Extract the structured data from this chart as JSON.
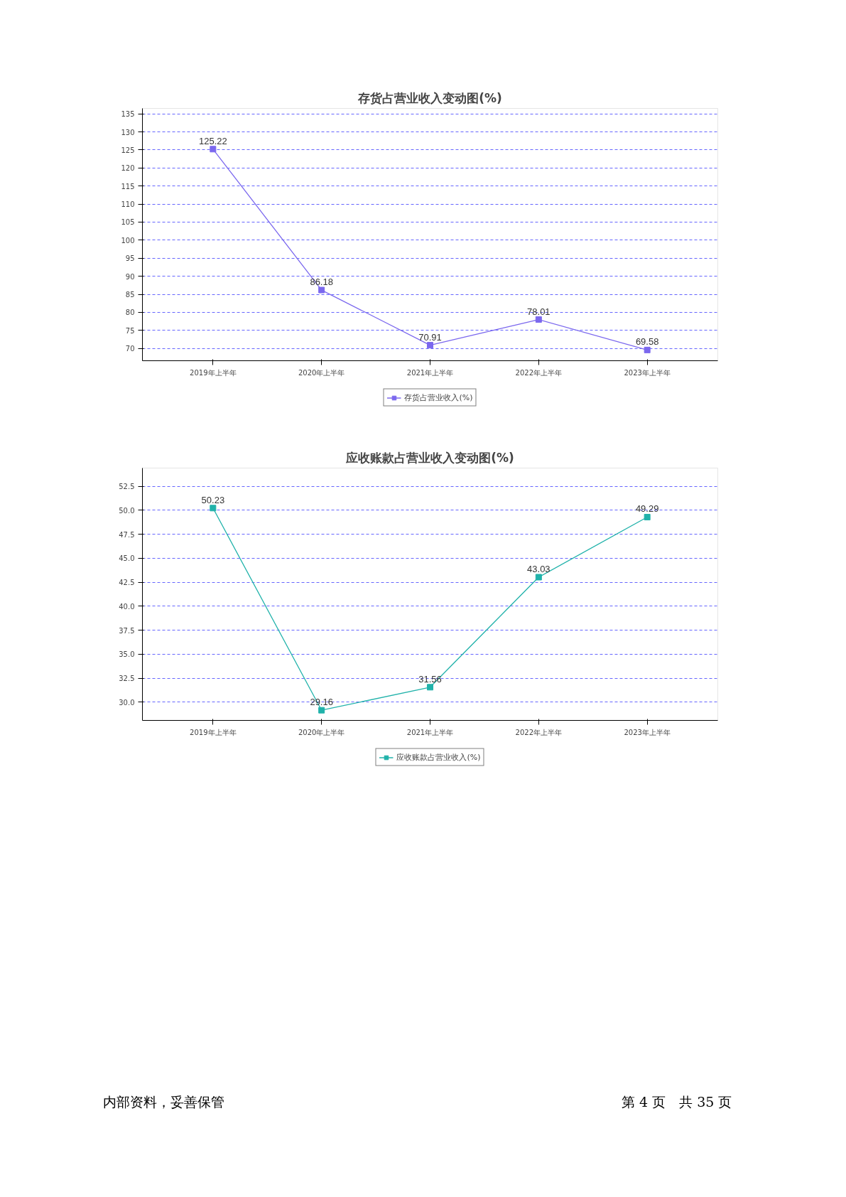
{
  "chart_data": [
    {
      "type": "line",
      "title": "存货占营业收入变动图(%)",
      "categories": [
        "2019年上半年",
        "2020年上半年",
        "2021年上半年",
        "2022年上半年",
        "2023年上半年"
      ],
      "series": [
        {
          "name": "存货占营业收入(%)",
          "color": "#7b68ee",
          "values": [
            125.22,
            86.18,
            70.91,
            78.01,
            69.58
          ]
        }
      ],
      "ylim": [
        66.6,
        136.5
      ],
      "yticks": [
        70,
        75,
        80,
        85,
        90,
        95,
        100,
        105,
        110,
        115,
        120,
        125,
        130,
        135
      ],
      "grid": "y",
      "legend": "bottom",
      "marker": "square",
      "line_style": "solid",
      "data_labels": true
    },
    {
      "type": "line",
      "title": "应收账款占营业收入变动图(%)",
      "categories": [
        "2019年上半年",
        "2020年上半年",
        "2021年上半年",
        "2022年上半年",
        "2023年上半年"
      ],
      "series": [
        {
          "name": "应收账款占营业收入(%)",
          "color": "#20b2aa",
          "values": [
            50.23,
            29.16,
            31.56,
            43.03,
            49.29
          ]
        }
      ],
      "ylim": [
        28.1,
        54.4
      ],
      "yticks": [
        {
          "value": 30,
          "label": "30.0"
        },
        {
          "value": 32.5,
          "label": "32.5"
        },
        {
          "value": 35,
          "label": "35.0"
        },
        {
          "value": 37.5,
          "label": "37.5"
        },
        {
          "value": 40,
          "label": "40.0"
        },
        {
          "value": 42.5,
          "label": "42.5"
        },
        {
          "value": 45,
          "label": "45.0"
        },
        {
          "value": 47.5,
          "label": "47.5"
        },
        {
          "value": 50,
          "label": "50.0"
        },
        {
          "value": 52.5,
          "label": "52.5"
        }
      ],
      "grid": "y",
      "legend": "bottom",
      "marker": "square",
      "line_style": "solid",
      "data_labels": true,
      "annotations": [
        "内部资料，妥善保管",
        "第 4 页　共 35 页"
      ]
    }
  ]
}
